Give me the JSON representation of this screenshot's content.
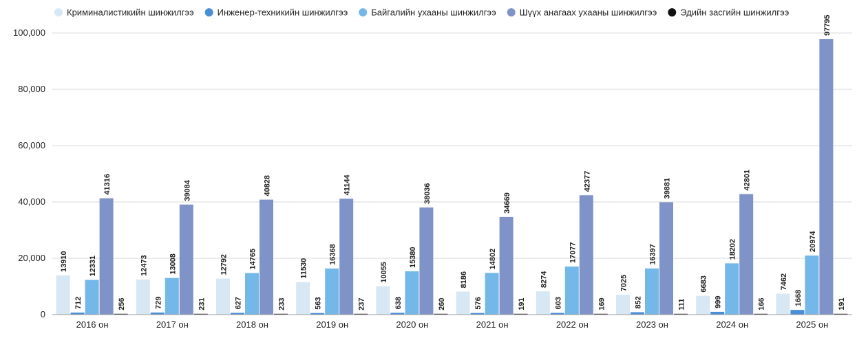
{
  "chart_data": {
    "type": "bar",
    "title": "",
    "xlabel": "",
    "ylabel": "",
    "ylim": [
      0,
      100000
    ],
    "yticks": [
      0,
      20000,
      40000,
      60000,
      80000,
      100000
    ],
    "ytick_labels": [
      "0",
      "20,000",
      "40,000",
      "60,000",
      "80,000",
      "100,000"
    ],
    "grid": true,
    "legend_position": "top",
    "categories": [
      "2016 он",
      "2017 он",
      "2018 он",
      "2019 он",
      "2020 он",
      "2021 он",
      "2022 он",
      "2023 он",
      "2024 он",
      "2025 он"
    ],
    "series": [
      {
        "name": "Криминалистикийн шинжилгээ",
        "color": "#d7e8f4",
        "values": [
          13910,
          12473,
          12792,
          11530,
          10055,
          8186,
          8274,
          7025,
          6683,
          7462
        ]
      },
      {
        "name": "Инженер-техникийн шинжилгээ",
        "color": "#4a8fd6",
        "values": [
          712,
          729,
          627,
          563,
          638,
          576,
          603,
          852,
          999,
          1668
        ]
      },
      {
        "name": "Байгалийн ухааны шинжилгээ",
        "color": "#74b8ea",
        "values": [
          12331,
          13008,
          14765,
          16368,
          15380,
          14802,
          17077,
          16397,
          18202,
          20974
        ]
      },
      {
        "name": "Шүүх анагаах ухааны шинжилгээ",
        "color": "#7f93c8",
        "values": [
          41316,
          39084,
          40828,
          41144,
          38036,
          34669,
          42377,
          39881,
          42801,
          97795
        ]
      },
      {
        "name": "Эдийн засгийн шинжилгээ",
        "color": "#111111",
        "values": [
          256,
          231,
          233,
          237,
          260,
          191,
          169,
          111,
          166,
          191
        ]
      }
    ]
  }
}
